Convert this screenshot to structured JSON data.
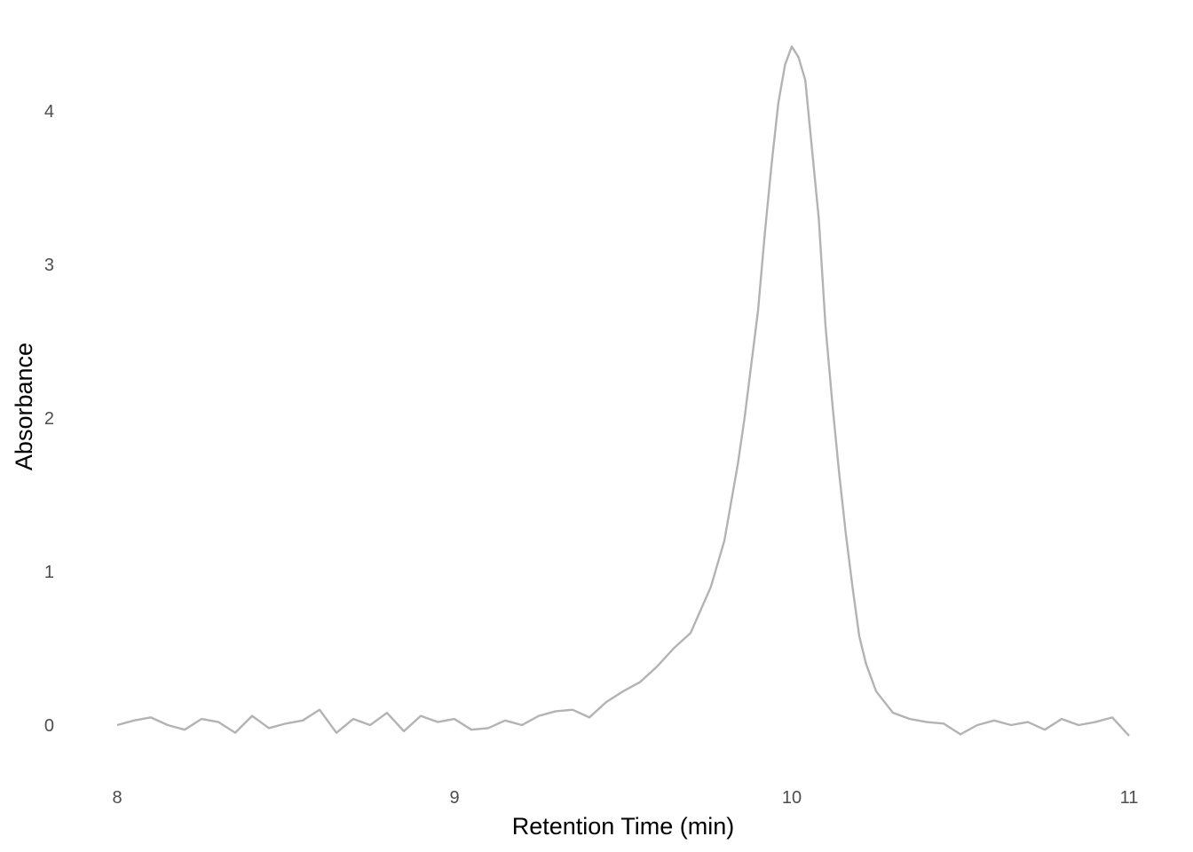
{
  "chart_data": {
    "type": "line",
    "title": "",
    "xlabel": "Retention Time (min)",
    "ylabel": "Absorbance",
    "xlim": [
      8,
      11
    ],
    "ylim": [
      -0.3,
      4.45
    ],
    "x_ticks": [
      {
        "value": 8,
        "label": "8"
      },
      {
        "value": 9,
        "label": "9"
      },
      {
        "value": 10,
        "label": "10"
      },
      {
        "value": 11,
        "label": "11"
      }
    ],
    "y_ticks": [
      {
        "value": 0,
        "label": "0"
      },
      {
        "value": 1,
        "label": "1"
      },
      {
        "value": 2,
        "label": "2"
      },
      {
        "value": 3,
        "label": "3"
      },
      {
        "value": 4,
        "label": "4"
      }
    ],
    "grid": false,
    "line_color": "#b3b3b3",
    "series": [
      {
        "x": [
          8.0,
          8.05,
          8.1,
          8.15,
          8.2,
          8.25,
          8.3,
          8.35,
          8.4,
          8.45,
          8.5,
          8.55,
          8.6,
          8.65,
          8.7,
          8.75,
          8.8,
          8.85,
          8.9,
          8.95,
          9.0,
          9.05,
          9.1,
          9.15,
          9.2,
          9.25,
          9.3,
          9.35,
          9.4,
          9.45,
          9.5,
          9.55,
          9.6,
          9.65,
          9.7,
          9.72,
          9.74,
          9.76,
          9.78,
          9.8,
          9.82,
          9.84,
          9.86,
          9.88,
          9.9,
          9.92,
          9.94,
          9.96,
          9.98,
          10.0,
          10.02,
          10.04,
          10.06,
          10.08,
          10.1,
          10.12,
          10.14,
          10.16,
          10.18,
          10.2,
          10.22,
          10.25,
          10.3,
          10.35,
          10.4,
          10.45,
          10.5,
          10.55,
          10.6,
          10.65,
          10.7,
          10.75,
          10.8,
          10.85,
          10.9,
          10.95,
          11.0
        ],
        "y": [
          0.0,
          0.03,
          0.05,
          0.0,
          -0.03,
          0.04,
          0.02,
          -0.05,
          0.06,
          -0.02,
          0.01,
          0.03,
          0.1,
          -0.05,
          0.04,
          0.0,
          0.08,
          -0.04,
          0.06,
          0.02,
          0.04,
          -0.03,
          -0.02,
          0.03,
          0.0,
          0.06,
          0.09,
          0.1,
          0.05,
          0.15,
          0.22,
          0.28,
          0.38,
          0.5,
          0.6,
          0.7,
          0.8,
          0.9,
          1.05,
          1.2,
          1.45,
          1.7,
          2.0,
          2.35,
          2.7,
          3.2,
          3.65,
          4.05,
          4.3,
          4.42,
          4.35,
          4.2,
          3.75,
          3.3,
          2.6,
          2.1,
          1.65,
          1.25,
          0.9,
          0.58,
          0.4,
          0.22,
          0.08,
          0.04,
          0.02,
          0.01,
          -0.06,
          0.0,
          0.03,
          0.0,
          0.02,
          -0.03,
          0.04,
          0.0,
          0.02,
          0.05,
          -0.07
        ]
      }
    ]
  }
}
